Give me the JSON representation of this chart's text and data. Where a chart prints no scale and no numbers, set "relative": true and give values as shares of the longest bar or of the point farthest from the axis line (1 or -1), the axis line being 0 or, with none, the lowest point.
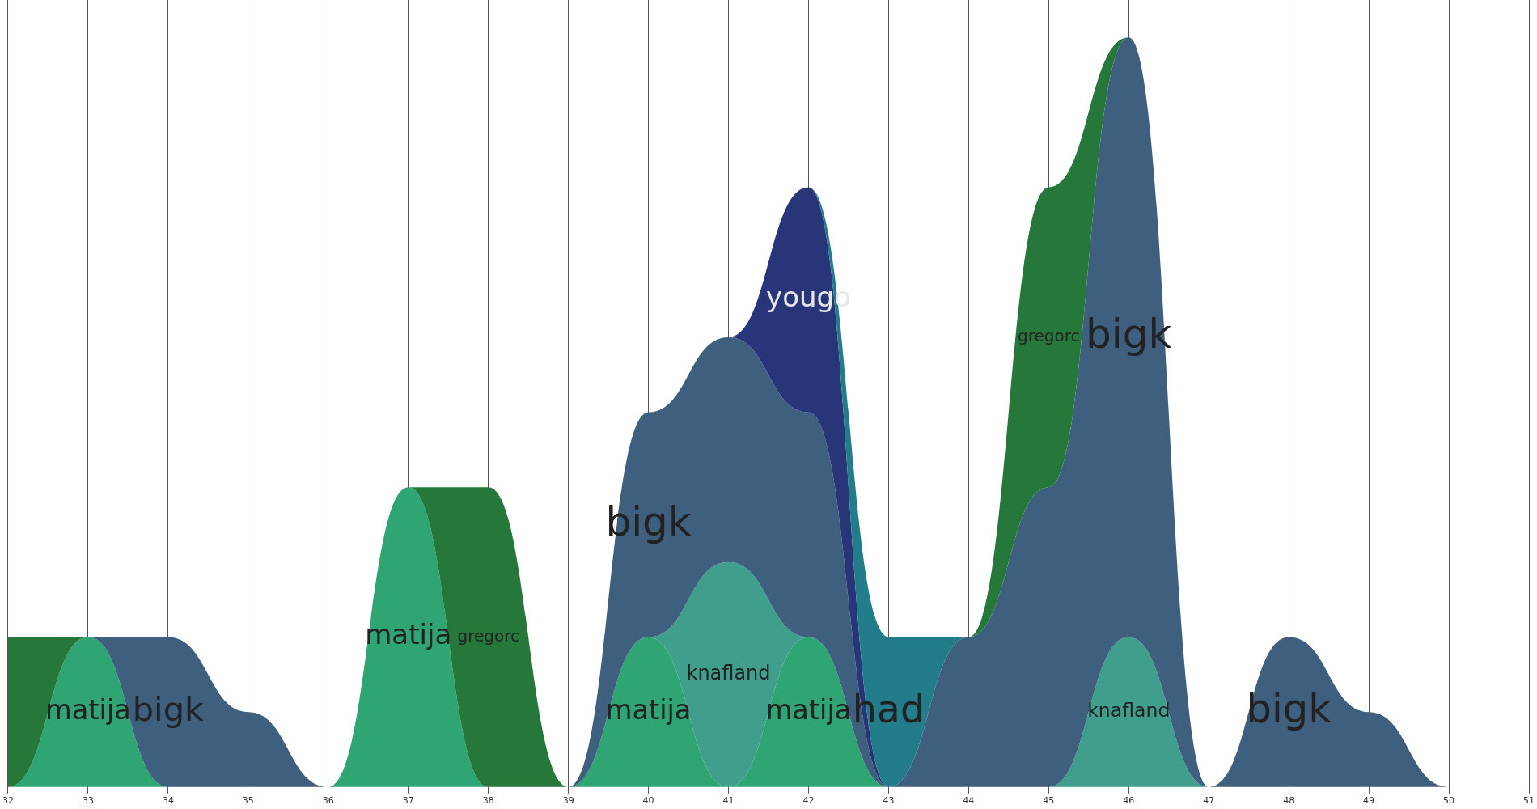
{
  "chart_data": {
    "type": "area",
    "stacked": true,
    "relative": true,
    "grid": "x",
    "legend": false,
    "x": [
      32,
      33,
      34,
      35,
      36,
      37,
      38,
      39,
      40,
      41,
      42,
      43,
      44,
      45,
      46,
      47,
      48,
      49,
      50
    ],
    "xlim": [
      32,
      51
    ],
    "xticks": [
      32,
      33,
      34,
      35,
      36,
      37,
      38,
      39,
      40,
      41,
      42,
      43,
      44,
      45,
      46,
      47,
      48,
      49,
      50,
      51
    ],
    "series": [
      {
        "name": "matija",
        "color": "#2ea572",
        "values": [
          0,
          0.2,
          0,
          null,
          0,
          0.4,
          0,
          0,
          0.2,
          0,
          0.2,
          0,
          null,
          null,
          null,
          null,
          null,
          null,
          null
        ]
      },
      {
        "name": "knafland",
        "color": "#3f9f8c",
        "values": [
          null,
          null,
          null,
          null,
          null,
          null,
          null,
          null,
          0,
          0.3,
          0,
          null,
          null,
          0,
          0.2,
          0,
          null,
          null,
          null
        ]
      },
      {
        "name": "bigk",
        "color": "#3f5f7f",
        "values": [
          null,
          0,
          0.2,
          0.1,
          0,
          null,
          null,
          0,
          0.3,
          0.3,
          0.3,
          0,
          0.2,
          0.4,
          0.8,
          0,
          0.2,
          0.1,
          0
        ]
      },
      {
        "name": "yougo",
        "color": "#283579",
        "values": [
          null,
          null,
          null,
          null,
          null,
          null,
          null,
          null,
          null,
          0,
          0.3,
          0,
          null,
          null,
          null,
          null,
          null,
          null,
          null
        ]
      },
      {
        "name": "had",
        "color": "#237c8a",
        "values": [
          null,
          null,
          null,
          null,
          null,
          null,
          null,
          null,
          null,
          null,
          0,
          0.2,
          0,
          null,
          null,
          null,
          null,
          null,
          null
        ]
      },
      {
        "name": "gregorc",
        "color": "#26773a",
        "values": [
          0.2,
          0,
          null,
          null,
          null,
          0,
          0.4,
          0,
          null,
          null,
          null,
          null,
          0,
          0.4,
          0,
          null,
          null,
          null,
          null
        ]
      }
    ]
  }
}
